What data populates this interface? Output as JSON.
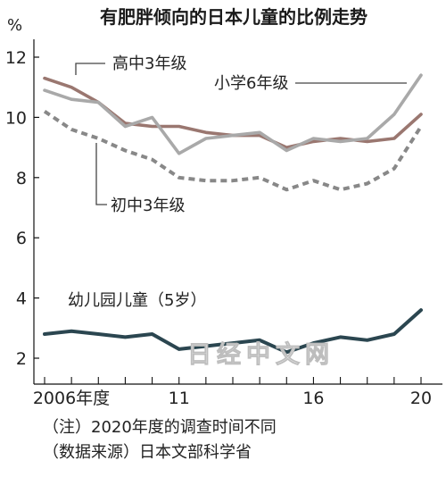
{
  "chart_data": {
    "type": "line",
    "title": "有肥胖倾向的日本儿童的比例走势",
    "ylabel": "%",
    "ylim": [
      2,
      12
    ],
    "yticks": [
      2,
      4,
      6,
      8,
      10,
      12
    ],
    "x": [
      2006,
      2007,
      2008,
      2009,
      2010,
      2011,
      2012,
      2013,
      2014,
      2015,
      2016,
      2017,
      2018,
      2019,
      2020
    ],
    "xtick_labels": [
      {
        "x": 2006,
        "label": "2006年度"
      },
      {
        "x": 2011,
        "label": "11"
      },
      {
        "x": 2016,
        "label": "16"
      },
      {
        "x": 2020,
        "label": "20"
      }
    ],
    "series": [
      {
        "name": "高中3年级",
        "color": "#9a7770",
        "style": "solid",
        "values": [
          11.3,
          11.0,
          10.5,
          9.8,
          9.7,
          9.7,
          9.5,
          9.4,
          9.4,
          9.0,
          9.2,
          9.3,
          9.2,
          9.3,
          10.1
        ]
      },
      {
        "name": "小学6年级",
        "color": "#a9a9a9",
        "style": "solid",
        "values": [
          10.9,
          10.6,
          10.5,
          9.7,
          10.0,
          8.8,
          9.3,
          9.4,
          9.5,
          8.9,
          9.3,
          9.2,
          9.3,
          10.1,
          11.4
        ]
      },
      {
        "name": "初中3年级",
        "color": "#888888",
        "style": "dashed",
        "values": [
          10.2,
          9.6,
          9.3,
          8.9,
          8.6,
          8.0,
          7.9,
          7.9,
          8.0,
          7.6,
          7.9,
          7.6,
          7.8,
          8.3,
          9.7
        ]
      },
      {
        "name": "幼儿园儿童（5岁）",
        "color": "#2b4650",
        "style": "solid",
        "values": [
          2.8,
          2.9,
          2.8,
          2.7,
          2.8,
          2.3,
          2.4,
          2.5,
          2.6,
          2.2,
          2.5,
          2.7,
          2.6,
          2.8,
          3.6
        ]
      }
    ],
    "grid": false
  },
  "notes": {
    "note1": "（注）2020年度的调查时间不同",
    "note2": "（数据来源）日本文部科学省"
  },
  "watermark": "日经中文网"
}
